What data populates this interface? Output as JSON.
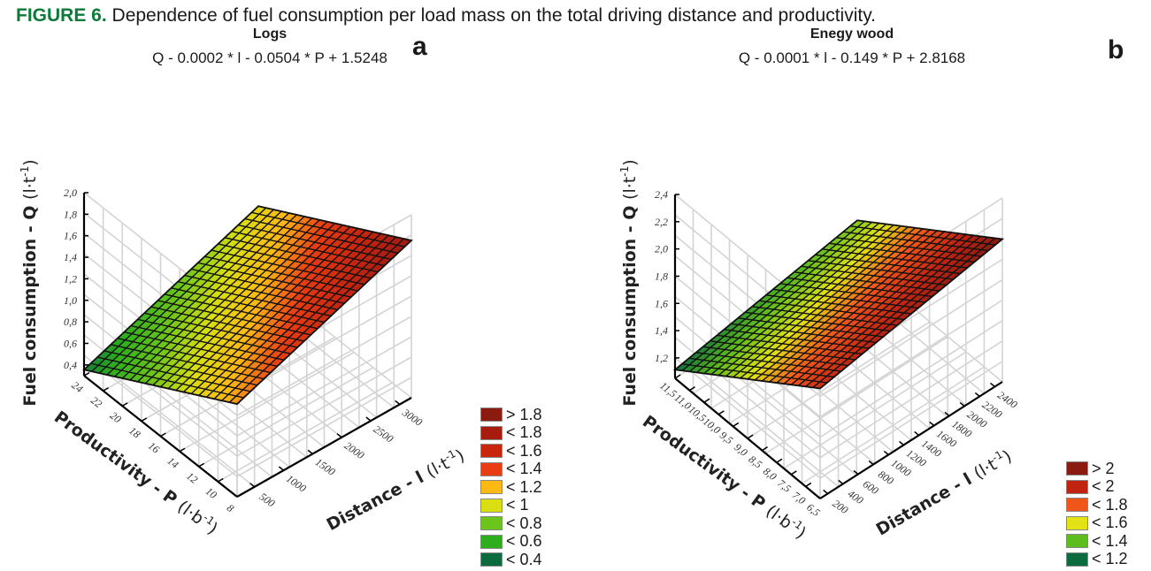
{
  "caption": {
    "label": "FIGURE 6.",
    "text": " Dependence of fuel consumption per load mass on the total driving distance and productivity."
  },
  "chart_data": [
    {
      "type": "surface3d",
      "panel": "a",
      "title": "Logs",
      "equation": "Q - 0.0002 * l - 0.0504 * P + 1.5248",
      "model": {
        "l_coef": 0.0002,
        "P_coef": -0.0504,
        "intercept": 1.5248
      },
      "zlabel": "Fuel consumption - Q (l·t-1)",
      "xlabel": "Distance - l (l·t-1)",
      "ylabel": "Productivity - P (l·b-1)",
      "x_ticks": [
        "500",
        "1000",
        "1500",
        "2000",
        "2500",
        "3000"
      ],
      "y_ticks": [
        "24",
        "22",
        "20",
        "18",
        "16",
        "14",
        "12",
        "10",
        "8"
      ],
      "z_ticks": [
        "0,4",
        "0,6",
        "0,8",
        "1,0",
        "1,2",
        "1,4",
        "1,6",
        "1,8",
        "2,0"
      ],
      "x_range": [
        200,
        3200
      ],
      "y_range": [
        8,
        24
      ],
      "z_range": [
        0.3,
        2.0
      ],
      "surface_x_range": [
        200,
        3200
      ],
      "surface_y_range": [
        8,
        24
      ],
      "legend": [
        {
          "label": "> 1.8",
          "color": "#8b1a10"
        },
        {
          "label": "< 1.8",
          "color": "#a81c10"
        },
        {
          "label": "< 1.6",
          "color": "#c8260e"
        },
        {
          "label": "< 1.4",
          "color": "#e83c12"
        },
        {
          "label": "< 1.2",
          "color": "#fdb913"
        },
        {
          "label": "< 1",
          "color": "#d9df10"
        },
        {
          "label": "< 0.8",
          "color": "#6cc51a"
        },
        {
          "label": "< 0.6",
          "color": "#2eae1e"
        },
        {
          "label": "< 0.4",
          "color": "#0b6a3e"
        }
      ],
      "legend_placement": "bottom-right"
    },
    {
      "type": "surface3d",
      "panel": "b",
      "title": "Enegy wood",
      "equation": "Q - 0.0001 * l - 0.149 * P + 2.8168",
      "model": {
        "l_coef": 0.0001,
        "P_coef": -0.149,
        "intercept": 2.8168
      },
      "zlabel": "Fuel consumption - Q (l·t-1)",
      "xlabel": "Distance - l (l·t-1)",
      "ylabel": "Productivity - P (l·b-1)",
      "x_ticks": [
        "200",
        "400",
        "600",
        "800",
        "1000",
        "1200",
        "1400",
        "1600",
        "1800",
        "2000",
        "2200",
        "2400"
      ],
      "y_ticks": [
        "11,5",
        "11,0",
        "10,5",
        "10,0",
        "9,5",
        "9,0",
        "8,5",
        "8,0",
        "7,5",
        "7,0",
        "6,5"
      ],
      "z_ticks": [
        "1,2",
        "1,4",
        "1,6",
        "1,8",
        "2,0",
        "2,2",
        "2,4"
      ],
      "x_range": [
        100,
        2500
      ],
      "y_range": [
        6.5,
        11.5
      ],
      "z_range": [
        1.05,
        2.4
      ],
      "surface_x_range": [
        100,
        2500
      ],
      "surface_y_range": [
        6.5,
        11.5
      ],
      "legend": [
        {
          "label": "> 2",
          "color": "#8b1a10"
        },
        {
          "label": "< 2",
          "color": "#c02410"
        },
        {
          "label": "< 1.8",
          "color": "#f0561a"
        },
        {
          "label": "< 1.6",
          "color": "#e2e214"
        },
        {
          "label": "< 1.4",
          "color": "#5dbd1c"
        },
        {
          "label": "< 1.2",
          "color": "#0b6a3e"
        }
      ],
      "legend_placement": "bottom-right"
    }
  ]
}
